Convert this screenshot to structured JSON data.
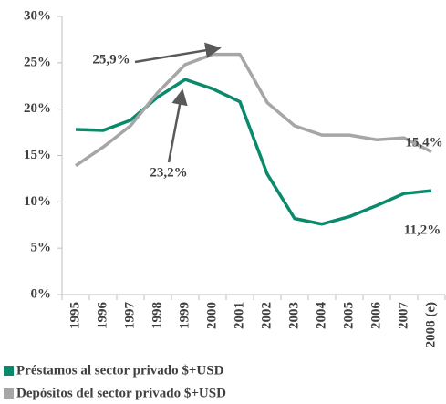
{
  "chart_data": {
    "type": "line",
    "categories": [
      "1995",
      "1996",
      "1997",
      "1998",
      "1999",
      "2000",
      "2001",
      "2002",
      "2003",
      "2004",
      "2005",
      "2006",
      "2007",
      "2008 (e)"
    ],
    "series": [
      {
        "name": "Préstamos al sector privado $+USD",
        "color": "#0b8a6b",
        "values": [
          17.8,
          17.7,
          18.8,
          21.3,
          23.2,
          22.2,
          20.8,
          13,
          8.2,
          7.6,
          8.4,
          9.6,
          10.9,
          11.2
        ],
        "value_labels": [
          null,
          null,
          null,
          null,
          "23,2%",
          null,
          null,
          null,
          null,
          null,
          null,
          null,
          null,
          "11,2%"
        ]
      },
      {
        "name": "Depósitos del sector privado $+USD",
        "color": "#a6a6a6",
        "values": [
          13.9,
          15.9,
          18.2,
          21.8,
          24.8,
          25.9,
          25.9,
          20.7,
          18.2,
          17.2,
          17.2,
          16.7,
          16.9,
          15.4
        ],
        "value_labels": [
          null,
          null,
          null,
          null,
          null,
          "25,9%",
          null,
          null,
          null,
          null,
          null,
          null,
          null,
          "15,4%"
        ]
      }
    ],
    "ylim": [
      0,
      30
    ],
    "yticks": [
      {
        "value": 0,
        "label": "0%"
      },
      {
        "value": 5,
        "label": "5%"
      },
      {
        "value": 10,
        "label": "10%"
      },
      {
        "value": 15,
        "label": "15%"
      },
      {
        "value": 20,
        "label": "20%"
      },
      {
        "value": 25,
        "label": "25%"
      },
      {
        "value": 30,
        "label": "30%"
      }
    ],
    "grid": false
  }
}
